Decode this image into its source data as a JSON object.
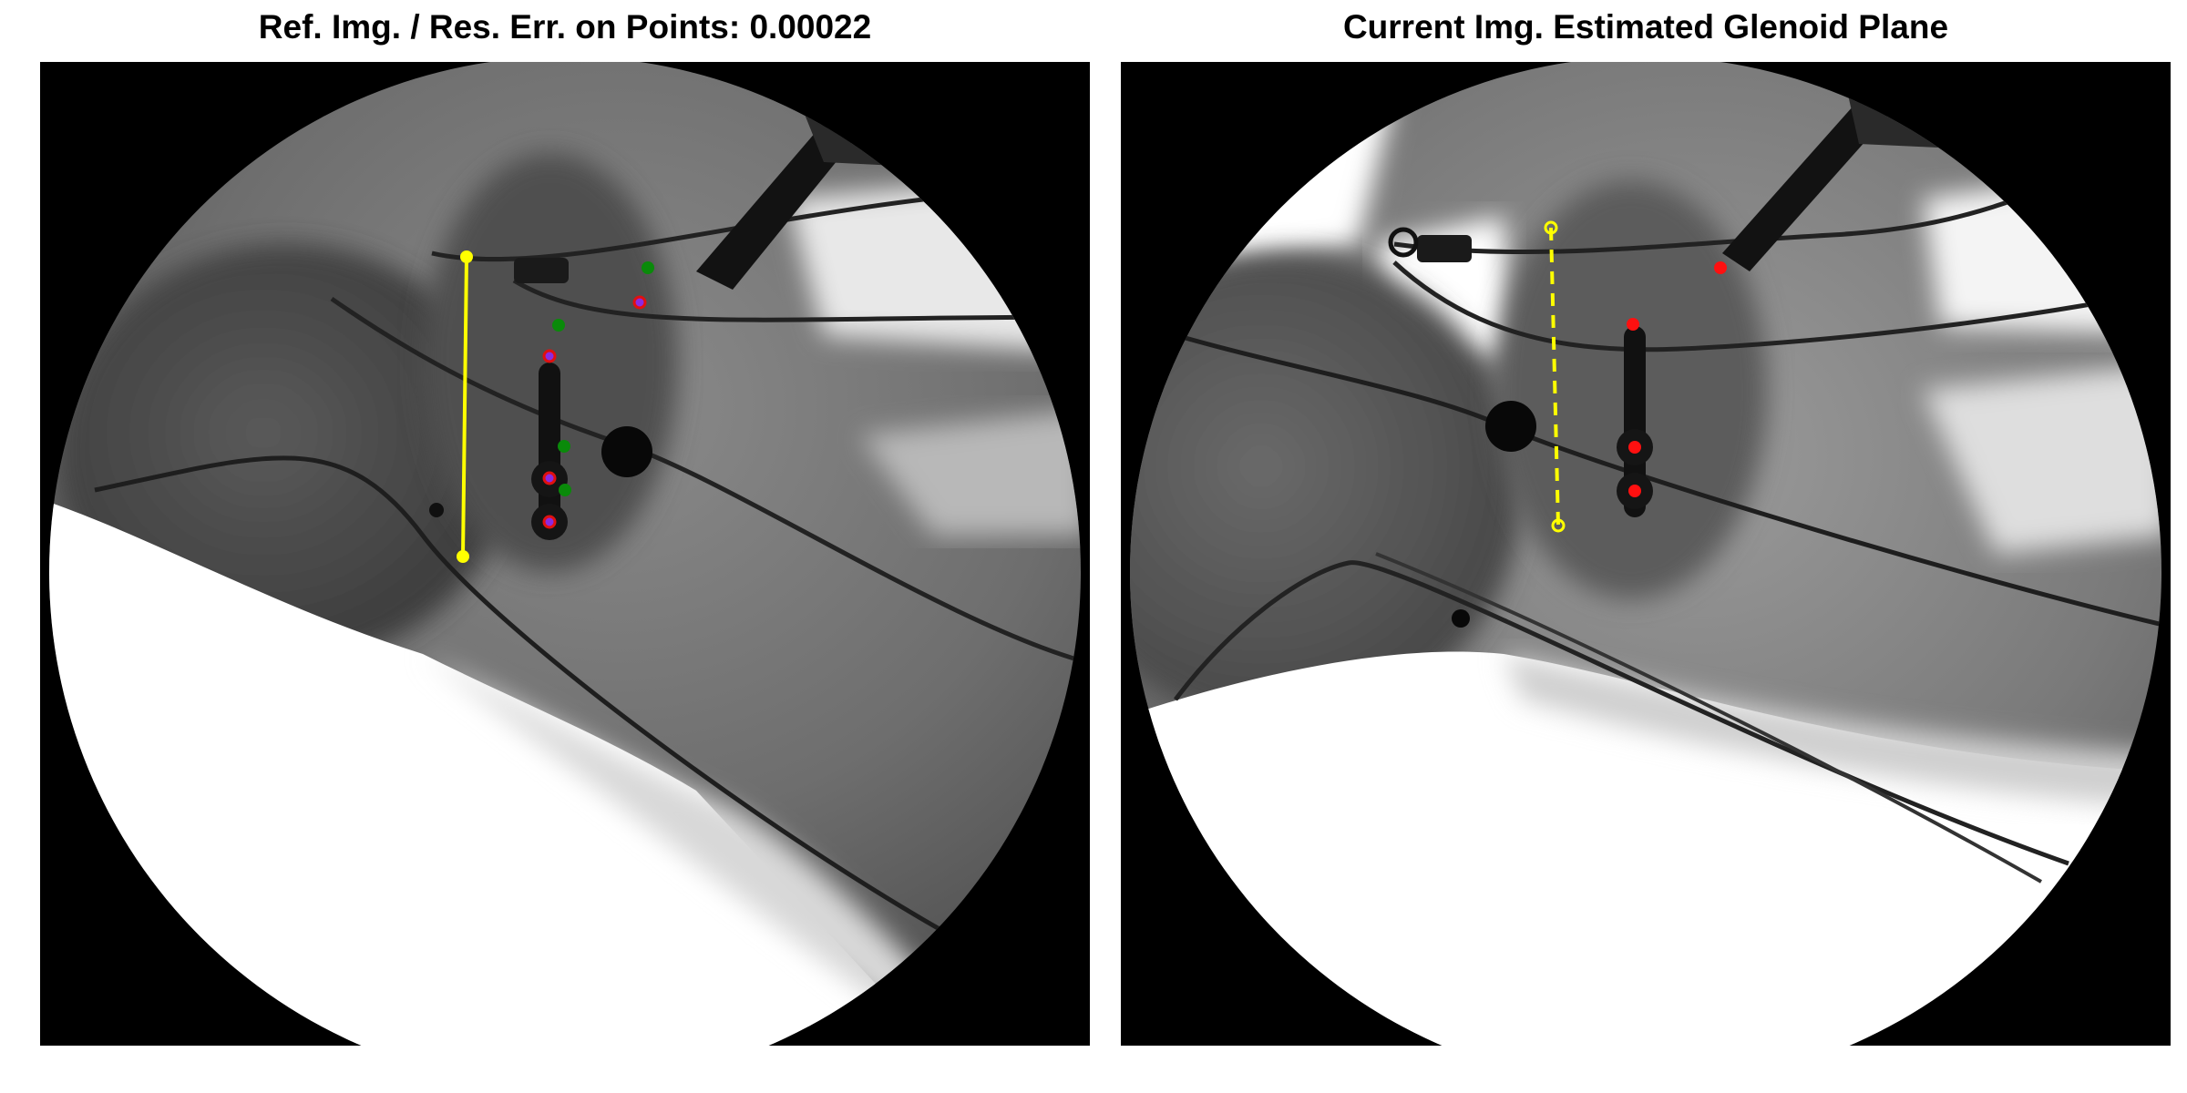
{
  "figure": {
    "panels": [
      {
        "title": "Ref. Img. / Res. Err. on Points: 0.00022",
        "image": "fluoroscopic-xray-shoulder-reference",
        "glenoid_line": {
          "color": "#ffff00",
          "style": "solid"
        },
        "marker_colors": {
          "detected": "#0a8a0a",
          "reprojected": "#e01010"
        }
      },
      {
        "title": "Current Img. Estimated Glenoid Plane",
        "image": "fluoroscopic-xray-shoulder-current",
        "glenoid_line": {
          "color": "#ffff00",
          "style": "dashed"
        },
        "marker_colors": {
          "reprojected": "#ff1010"
        }
      }
    ]
  }
}
